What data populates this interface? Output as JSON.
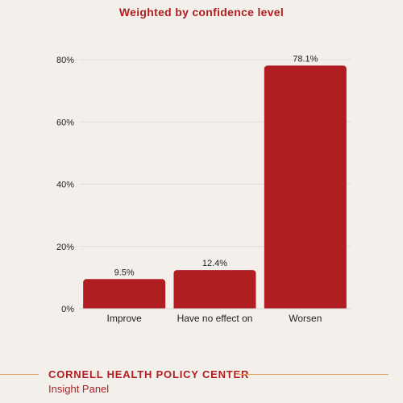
{
  "chart_data": {
    "type": "bar",
    "subtitle": "Weighted by confidence level",
    "categories": [
      "Improve",
      "Have no effect on",
      "Worsen"
    ],
    "values": [
      9.5,
      12.4,
      78.1
    ],
    "value_labels": [
      "9.5%",
      "12.4%",
      "78.1%"
    ],
    "ylim": [
      0,
      80
    ],
    "yticks": [
      0,
      20,
      40,
      60,
      80
    ],
    "ytick_labels": [
      "0%",
      "20%",
      "40%",
      "60%",
      "80%"
    ],
    "grid": true,
    "bar_color": "#b01e22"
  },
  "footer": {
    "organization": "CORNELL HEALTH POLICY CENTER",
    "panel": "Insight Panel",
    "rule_color": "#e8a15a"
  }
}
